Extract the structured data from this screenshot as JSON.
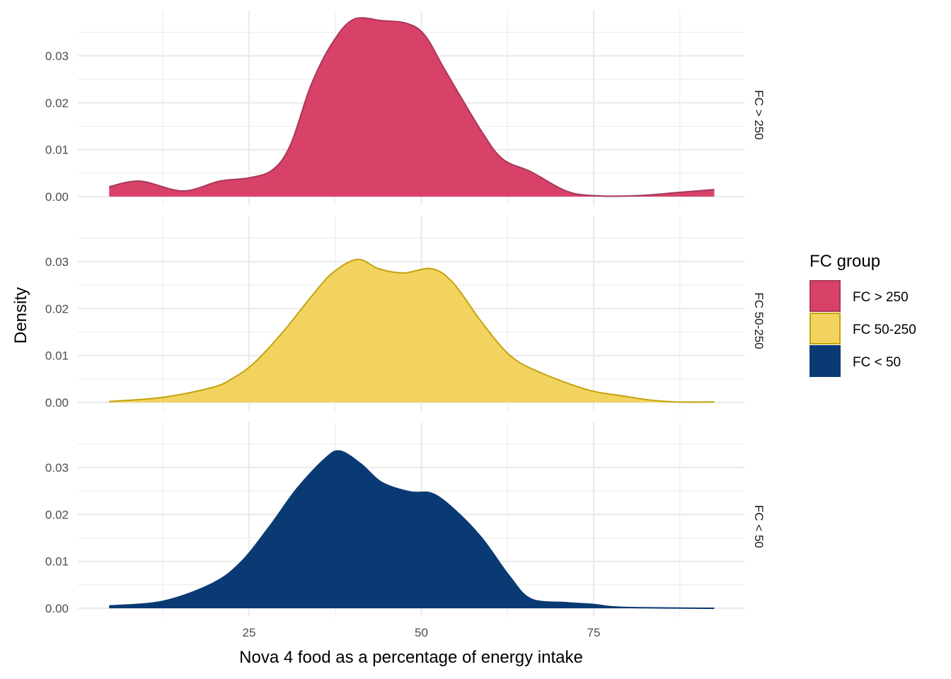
{
  "chart_data": {
    "type": "area",
    "subtype": "faceted density plot",
    "xlabel": "Nova 4 food as a percentage of energy intake",
    "ylabel": "Density",
    "xlim": [
      0,
      97
    ],
    "ylim": [
      0,
      0.0395
    ],
    "x_ticks": [
      25,
      50,
      75
    ],
    "x_tick_labels": [
      "25",
      "50",
      "75"
    ],
    "y_ticks": [
      0,
      0.01,
      0.02,
      0.03
    ],
    "y_tick_labels": [
      "0.00",
      "0.01",
      "0.02",
      "0.03"
    ],
    "grid": true,
    "facets": [
      "FC > 250",
      "FC 50-250",
      "FC < 50"
    ],
    "legend": {
      "title": "FC group",
      "placement": "right",
      "entries": [
        "FC > 250",
        "FC 50-250",
        "FC < 50"
      ]
    },
    "series": [
      {
        "name": "FC > 250",
        "fill": "#d84268",
        "stroke": "#a8385a",
        "x": [
          4.7,
          9.2,
          15.4,
          20.7,
          25.0,
          28.4,
          31.0,
          34.0,
          37.1,
          40.2,
          44.3,
          47.9,
          50.5,
          53.5,
          58.7,
          61.8,
          65.9,
          71.0,
          75.1,
          81.3,
          87.4,
          92.5
        ],
        "y": [
          0.0021,
          0.0033,
          0.0012,
          0.0033,
          0.004,
          0.0057,
          0.011,
          0.0238,
          0.0328,
          0.0378,
          0.0375,
          0.0369,
          0.0344,
          0.0268,
          0.014,
          0.008,
          0.0053,
          0.0012,
          0.0002,
          0.0002,
          0.0009,
          0.0015
        ]
      },
      {
        "name": "FC 50-250",
        "fill": "#f3d360",
        "stroke": "#c4a30a",
        "x": [
          4.7,
          12.5,
          19.7,
          22.7,
          25.8,
          29.9,
          34.0,
          37.1,
          40.7,
          43.8,
          47.4,
          51.5,
          54.6,
          58.7,
          62.8,
          66.9,
          74.1,
          79.2,
          83.3,
          87.4,
          92.5
        ],
        "y": [
          0.0002,
          0.0011,
          0.0032,
          0.0052,
          0.0085,
          0.015,
          0.0225,
          0.0276,
          0.0305,
          0.0285,
          0.0276,
          0.0285,
          0.0255,
          0.0172,
          0.0101,
          0.0066,
          0.0027,
          0.0014,
          0.0005,
          0.0001,
          0.0001
        ]
      },
      {
        "name": "FC < 50",
        "fill": "#0a3a73",
        "stroke": "#0a3a73",
        "x": [
          4.7,
          12.5,
          19.7,
          23.8,
          27.9,
          32.0,
          36.1,
          38.2,
          41.2,
          44.3,
          48.4,
          51.5,
          54.6,
          58.7,
          62.8,
          65.9,
          71.0,
          75.1,
          79.2,
          92.5
        ],
        "y": [
          0.0005,
          0.0015,
          0.0053,
          0.0098,
          0.0173,
          0.0256,
          0.032,
          0.0335,
          0.0308,
          0.0268,
          0.0248,
          0.0245,
          0.0213,
          0.0151,
          0.0068,
          0.002,
          0.0012,
          0.0008,
          0.0002,
          0.0
        ]
      }
    ]
  }
}
